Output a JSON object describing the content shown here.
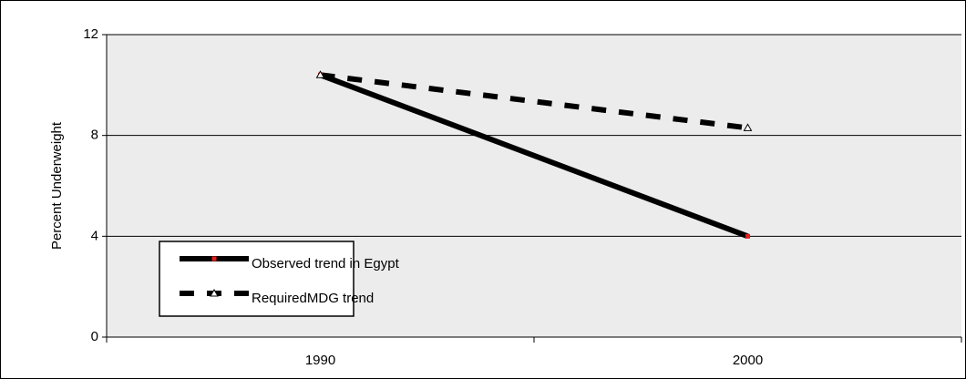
{
  "chart_data": {
    "type": "line",
    "y_label": "Percent Underweight",
    "categories": [
      "1990",
      "2000"
    ],
    "series": [
      {
        "name": "Observed trend in Egypt",
        "color": "#000000",
        "line_style": "solid",
        "marker": "square",
        "marker_color": "#e0201b",
        "values": [
          10.4,
          4.0
        ]
      },
      {
        "name": "RequiredMDG trend",
        "color": "#000000",
        "line_style": "dashed",
        "marker": "triangle",
        "marker_color": "#ffffff",
        "values": [
          10.4,
          8.3
        ]
      }
    ],
    "ylim": [
      0,
      12
    ],
    "yticks": [
      0,
      4,
      8,
      12
    ],
    "grid": true,
    "legend": "bottom-left"
  }
}
